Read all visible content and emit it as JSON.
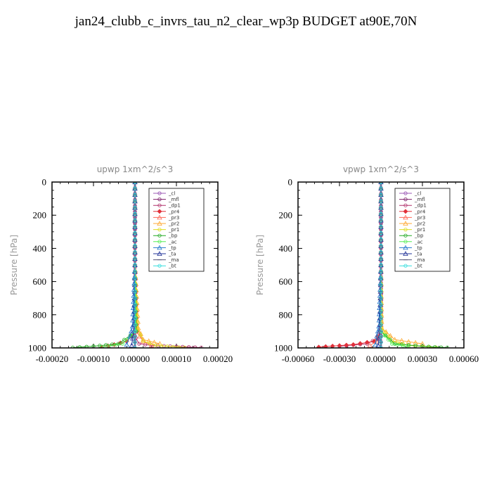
{
  "title": "jan24_clubb_c_invrs_tau_n2_clear_wp3p  BUDGET at90E,70N",
  "chart_data": [
    {
      "type": "line",
      "title": "upwp   1xm^2/s^3",
      "ylabel": "Pressure [hPa]",
      "xlim": [
        -0.0002,
        0.0002
      ],
      "ylim": [
        1000,
        0
      ],
      "xticks": [
        -0.0002,
        -0.0001,
        0,
        0.0001,
        0.0002
      ],
      "xtick_labels": [
        "-0.00020",
        "-0.00010",
        "0.00000",
        "0.00010",
        "0.00020"
      ],
      "yticks": [
        0,
        200,
        400,
        600,
        800,
        1000
      ],
      "ytick_labels": [
        "0",
        "200",
        "400",
        "600",
        "800",
        "1000"
      ],
      "legend_position": "top-right",
      "series": [
        {
          "name": "_cl",
          "color": "#9b59b6",
          "x": [
            0,
            0,
            0,
            0,
            0
          ],
          "y": [
            0,
            250,
            500,
            750,
            1000
          ]
        },
        {
          "name": "_mfl",
          "color": "#7b1f6a",
          "x": [
            0,
            0,
            0,
            0,
            0
          ],
          "y": [
            0,
            250,
            500,
            750,
            1000
          ]
        },
        {
          "name": "_dp1",
          "color": "#b0306b",
          "x": [
            0,
            0,
            0,
            2e-06,
            1e-05,
            4e-05,
            0.00016
          ],
          "y": [
            0,
            400,
            850,
            940,
            975,
            985,
            998
          ]
        },
        {
          "name": "_pr4",
          "color": "#e0303a",
          "x": [
            0,
            0,
            5e-06,
            -2e-05,
            -5e-05,
            -8e-05
          ],
          "y": [
            0,
            500,
            900,
            960,
            980,
            995
          ]
        },
        {
          "name": "_pr3",
          "color": "#ff6655",
          "x": [
            0,
            0,
            3e-06,
            2e-05,
            4e-05
          ],
          "y": [
            0,
            500,
            900,
            960,
            985
          ]
        },
        {
          "name": "_pr2",
          "color": "#ffaa33",
          "x": [
            0,
            0,
            8e-06,
            2e-05,
            6e-05
          ],
          "y": [
            0,
            500,
            880,
            950,
            975
          ]
        },
        {
          "name": "_pr1",
          "color": "#dddd22",
          "x": [
            0,
            0,
            6e-06,
            2e-05,
            5e-05,
            0.00012
          ],
          "y": [
            0,
            500,
            880,
            960,
            985,
            998
          ]
        },
        {
          "name": "_bp",
          "color": "#22aa22",
          "x": [
            0,
            0,
            3e-06,
            -4e-05,
            -0.0001,
            -0.00015
          ],
          "y": [
            0,
            500,
            900,
            975,
            990,
            998
          ]
        },
        {
          "name": "_ac",
          "color": "#55ee55",
          "x": [
            0,
            0,
            2e-06,
            -3e-05,
            -8e-05
          ],
          "y": [
            0,
            500,
            900,
            975,
            995
          ]
        },
        {
          "name": "_tp",
          "color": "#2277cc",
          "x": [
            0,
            0,
            -6e-06,
            -1.2e-05,
            -2e-05
          ],
          "y": [
            0,
            500,
            870,
            930,
            980
          ]
        },
        {
          "name": "_ta",
          "color": "#223399",
          "x": [
            0,
            0,
            -3e-06,
            -8e-06
          ],
          "y": [
            0,
            500,
            900,
            985
          ]
        },
        {
          "name": "_ma",
          "color": "#555577",
          "x": [
            0,
            0,
            0,
            0
          ],
          "y": [
            0,
            500,
            900,
            1000
          ]
        },
        {
          "name": "_bt",
          "color": "#33dddd",
          "x": [
            0,
            0,
            0,
            0
          ],
          "y": [
            0,
            500,
            900,
            1000
          ]
        }
      ]
    },
    {
      "type": "line",
      "title": "vpwp   1xm^2/s^3",
      "ylabel": "Pressure [hPa]",
      "xlim": [
        -0.0006,
        0.0006
      ],
      "ylim": [
        1000,
        0
      ],
      "xticks": [
        -0.0006,
        -0.0003,
        0,
        0.0003,
        0.0006
      ],
      "xtick_labels": [
        "-0.00060",
        "-0.00030",
        "0.00000",
        "0.00030",
        "0.00060"
      ],
      "yticks": [
        0,
        200,
        400,
        600,
        800,
        1000
      ],
      "ytick_labels": [
        "0",
        "200",
        "400",
        "600",
        "800",
        "1000"
      ],
      "legend_position": "top-right",
      "series": [
        {
          "name": "_cl",
          "color": "#9b59b6",
          "x": [
            0,
            0,
            0,
            0,
            0
          ],
          "y": [
            0,
            250,
            500,
            750,
            1000
          ]
        },
        {
          "name": "_mfl",
          "color": "#7b1f6a",
          "x": [
            0,
            0,
            0,
            0,
            0
          ],
          "y": [
            0,
            250,
            500,
            750,
            1000
          ]
        },
        {
          "name": "_dp1",
          "color": "#b0306b",
          "x": [
            0,
            0,
            0,
            -2e-05,
            -0.0001,
            -0.0003
          ],
          "y": [
            0,
            400,
            850,
            940,
            975,
            990
          ]
        },
        {
          "name": "_pr4",
          "color": "#e0303a",
          "x": [
            0,
            0,
            0,
            -5e-05,
            -0.0002,
            -0.00045
          ],
          "y": [
            0,
            500,
            900,
            960,
            980,
            995
          ]
        },
        {
          "name": "_pr3",
          "color": "#ff6655",
          "x": [
            0,
            0,
            0,
            -3e-05,
            -8e-05
          ],
          "y": [
            0,
            500,
            900,
            960,
            985
          ]
        },
        {
          "name": "_pr2",
          "color": "#ffaa33",
          "x": [
            0,
            0,
            5e-06,
            0.0001,
            0.0003
          ],
          "y": [
            0,
            500,
            880,
            950,
            975
          ]
        },
        {
          "name": "_pr1",
          "color": "#dddd22",
          "x": [
            0,
            0,
            5e-06,
            8e-05,
            0.0002,
            0.0004
          ],
          "y": [
            0,
            500,
            880,
            960,
            985,
            998
          ]
        },
        {
          "name": "_bp",
          "color": "#22aa22",
          "x": [
            0,
            0,
            0,
            0.0001,
            0.0003,
            0.00048
          ],
          "y": [
            0,
            500,
            900,
            975,
            990,
            998
          ]
        },
        {
          "name": "_ac",
          "color": "#55ee55",
          "x": [
            0,
            0,
            0,
            8e-05,
            0.0002
          ],
          "y": [
            0,
            500,
            900,
            975,
            995
          ]
        },
        {
          "name": "_tp",
          "color": "#2277cc",
          "x": [
            0,
            0,
            -1.5e-05,
            -3e-05,
            -4e-05
          ],
          "y": [
            0,
            500,
            870,
            930,
            980
          ]
        },
        {
          "name": "_ta",
          "color": "#223399",
          "x": [
            0,
            0,
            -1e-05,
            -2e-05
          ],
          "y": [
            0,
            500,
            900,
            985
          ]
        },
        {
          "name": "_ma",
          "color": "#555577",
          "x": [
            0,
            0,
            0,
            0
          ],
          "y": [
            0,
            500,
            900,
            1000
          ]
        },
        {
          "name": "_bt",
          "color": "#33dddd",
          "x": [
            0,
            0,
            0,
            0
          ],
          "y": [
            0,
            500,
            900,
            1000
          ]
        }
      ]
    }
  ]
}
